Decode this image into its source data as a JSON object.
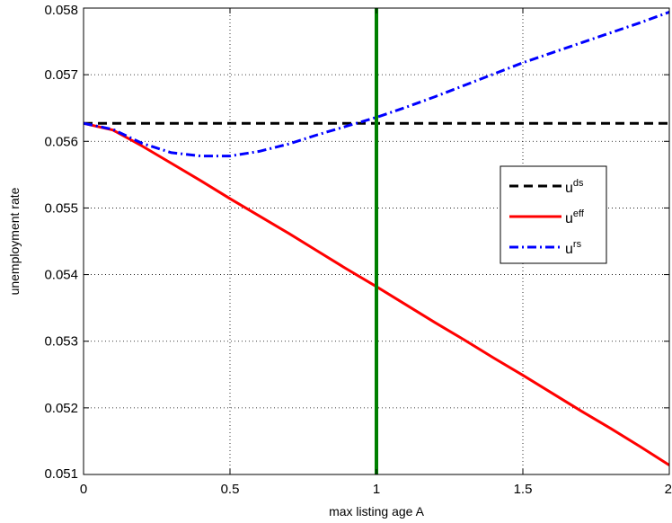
{
  "chart_data": {
    "type": "line",
    "xlabel": "max listing age A",
    "ylabel": "unemployment rate",
    "xlim": [
      0,
      2
    ],
    "ylim": [
      0.051,
      0.058
    ],
    "x_ticks": [
      0,
      0.5,
      1,
      1.5,
      2
    ],
    "x_tick_labels": [
      "0",
      "0.5",
      "1",
      "1.5",
      "2"
    ],
    "y_ticks": [
      0.051,
      0.052,
      0.053,
      0.054,
      0.055,
      0.056,
      0.057,
      0.058
    ],
    "y_tick_labels": [
      "0.051",
      "0.052",
      "0.053",
      "0.054",
      "0.055",
      "0.056",
      "0.057",
      "0.058"
    ],
    "grid": true,
    "legend_position": "right",
    "vertical_line": {
      "x": 1,
      "color": "#008000"
    },
    "series": [
      {
        "name": "u",
        "name_sup": "ds",
        "style": "dashed",
        "color": "#000000",
        "x": [
          0,
          2
        ],
        "y": [
          0.05627,
          0.05627
        ]
      },
      {
        "name": "u",
        "name_sup": "eff",
        "style": "solid",
        "color": "#ff0000",
        "x": [
          0,
          0.1,
          0.2,
          0.3,
          0.4,
          0.5,
          0.6,
          0.7,
          0.8,
          0.9,
          1.0,
          1.1,
          1.2,
          1.3,
          1.4,
          1.5,
          1.6,
          1.7,
          1.8,
          1.9,
          2.0
        ],
        "y": [
          0.05627,
          0.05617,
          0.05593,
          0.05567,
          0.05541,
          0.05514,
          0.05488,
          0.05462,
          0.05435,
          0.05408,
          0.05382,
          0.05355,
          0.05328,
          0.05302,
          0.05275,
          0.05249,
          0.05222,
          0.05195,
          0.05169,
          0.05142,
          0.05114
        ]
      },
      {
        "name": "u",
        "name_sup": "rs",
        "style": "dashdot",
        "color": "#0000ff",
        "x": [
          0,
          0.1,
          0.2,
          0.3,
          0.4,
          0.5,
          0.6,
          0.7,
          0.8,
          0.9,
          1.0,
          1.1,
          1.2,
          1.3,
          1.4,
          1.5,
          1.6,
          1.7,
          1.8,
          1.9,
          2.0
        ],
        "y": [
          0.05627,
          0.05618,
          0.05597,
          0.05583,
          0.05578,
          0.05578,
          0.05585,
          0.05596,
          0.0561,
          0.05623,
          0.05636,
          0.05651,
          0.05667,
          0.05684,
          0.05701,
          0.05718,
          0.05733,
          0.05748,
          0.05763,
          0.05778,
          0.05794
        ]
      }
    ]
  }
}
